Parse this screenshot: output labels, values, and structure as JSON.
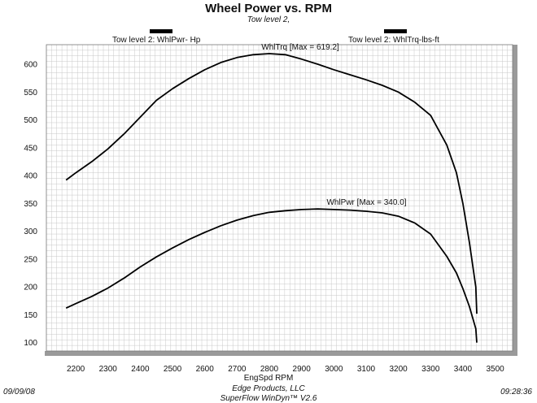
{
  "header": {
    "title": "Wheel Power vs. RPM",
    "subtitle": "Tow level 2,"
  },
  "legend": {
    "power_label": "Tow level 2: WhlPwr- Hp",
    "torque_label": "Tow level 2: WhlTrq-lbs-ft"
  },
  "footer": {
    "date": "09/09/08",
    "time": "09:28:36",
    "company": "Edge Products, LLC",
    "software": "SuperFlow WinDyn™ V2.6"
  },
  "colors": {
    "line": "#000000",
    "grid": "#c8c8c8",
    "axis_band": "#9a9a9a"
  },
  "chart_data": {
    "type": "line",
    "title": "Wheel Power vs. RPM",
    "subtitle": "Tow level 2,",
    "xlabel": "EngSpd  RPM",
    "ylabel": "",
    "xlim": [
      2100,
      3500
    ],
    "ylim": [
      80,
      640
    ],
    "x_ticks": [
      2200,
      2300,
      2400,
      2500,
      2600,
      2700,
      2800,
      2900,
      3000,
      3100,
      3200,
      3300,
      3400,
      3500
    ],
    "y_ticks": [
      100,
      150,
      200,
      250,
      300,
      350,
      400,
      450,
      500,
      550,
      600
    ],
    "grid": true,
    "legend_position": "top",
    "series": [
      {
        "name": "Tow level 2: WhlTrq-lbs-ft",
        "annotation": "WhlTrq [Max = 619.2]",
        "x": [
          2170,
          2200,
          2250,
          2300,
          2350,
          2400,
          2450,
          2500,
          2550,
          2600,
          2650,
          2700,
          2750,
          2800,
          2850,
          2900,
          2950,
          3000,
          3050,
          3100,
          3150,
          3200,
          3250,
          3300,
          3350,
          3380,
          3400,
          3420,
          3440,
          3443
        ],
        "y": [
          392,
          405,
          425,
          448,
          475,
          505,
          535,
          556,
          574,
          590,
          603,
          612,
          617,
          619,
          617,
          609,
          600,
          590,
          581,
          572,
          562,
          550,
          532,
          508,
          455,
          405,
          350,
          280,
          200,
          152
        ]
      },
      {
        "name": "Tow level 2: WhlPwr- Hp",
        "annotation": "WhlPwr [Max = 340.0]",
        "x": [
          2170,
          2200,
          2250,
          2300,
          2350,
          2400,
          2450,
          2500,
          2550,
          2600,
          2650,
          2700,
          2750,
          2800,
          2850,
          2900,
          2950,
          3000,
          3050,
          3100,
          3150,
          3200,
          3250,
          3300,
          3350,
          3380,
          3400,
          3420,
          3440,
          3443
        ],
        "y": [
          162,
          170,
          183,
          198,
          216,
          236,
          254,
          270,
          285,
          298,
          310,
          320,
          328,
          334,
          337,
          339,
          340,
          339,
          338,
          336,
          333,
          327,
          315,
          295,
          255,
          225,
          197,
          165,
          125,
          100
        ]
      }
    ]
  }
}
